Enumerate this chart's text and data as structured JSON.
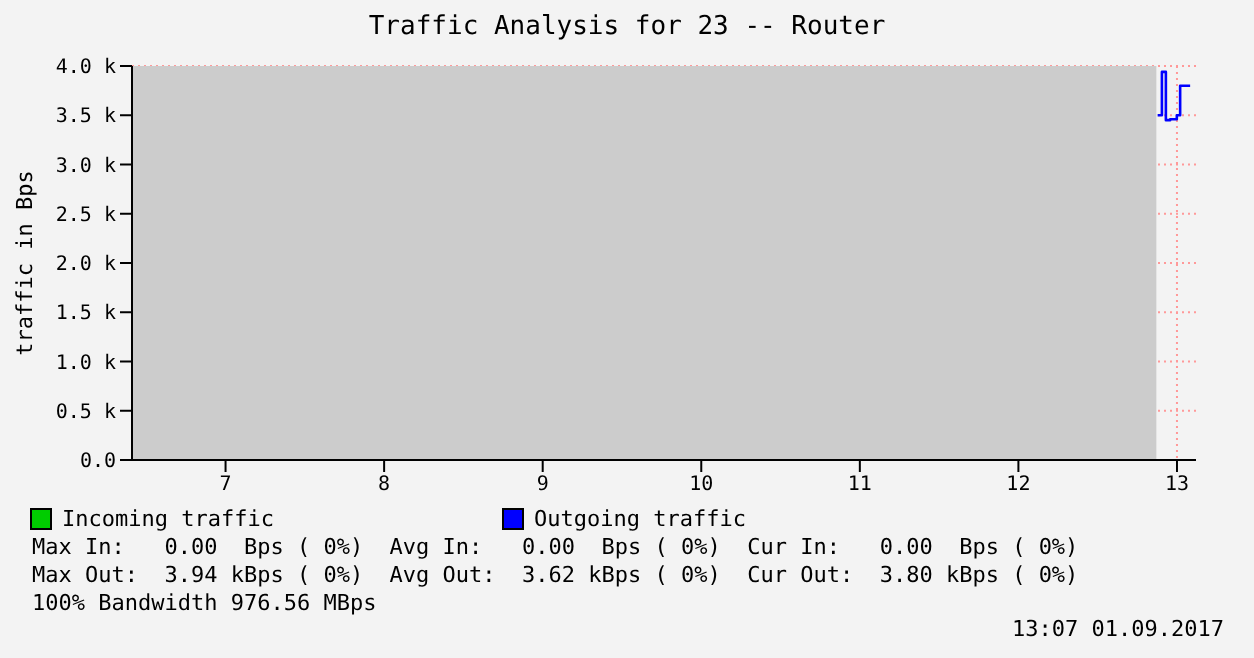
{
  "chart_data": {
    "type": "step",
    "title": "Traffic Analysis for 23 -- Router",
    "ylabel": "traffic in Bps",
    "xlim": [
      6.41,
      13.12
    ],
    "xticks": [
      7,
      8,
      9,
      10,
      11,
      12,
      13
    ],
    "ylim": [
      0,
      4000
    ],
    "yticks": [
      {
        "value": 0,
        "label": "0.0"
      },
      {
        "value": 500,
        "label": "0.5 k"
      },
      {
        "value": 1000,
        "label": "1.0 k"
      },
      {
        "value": 1500,
        "label": "1.5 k"
      },
      {
        "value": 2000,
        "label": "2.0 k"
      },
      {
        "value": 2500,
        "label": "2.5 k"
      },
      {
        "value": 3000,
        "label": "3.0 k"
      },
      {
        "value": 3500,
        "label": "3.5 k"
      },
      {
        "value": 4000,
        "label": "4.0 k"
      }
    ],
    "x": [
      12.878,
      12.905,
      12.93,
      12.957,
      12.999,
      13.02,
      13.083
    ],
    "series": [
      {
        "name": "Incoming traffic",
        "color": "#00cc00",
        "values": [
          null,
          null,
          null,
          null,
          null,
          null,
          null
        ]
      },
      {
        "name": "Outgoing traffic",
        "color": "#0000ff",
        "values": [
          3500,
          3940,
          3450,
          3460,
          3500,
          3800,
          3800
        ]
      }
    ],
    "bands": [
      {
        "axis": "x",
        "from": 6.41,
        "to": 12.87,
        "color": "#cccccc"
      }
    ],
    "grid": true,
    "legend": "bottom",
    "marker": "none",
    "line_style": "solid",
    "annotations": [
      "Max In:   0.00  Bps ( 0%)  Avg In:   0.00  Bps ( 0%)  Cur In:   0.00  Bps ( 0%)",
      "Max Out:  3.94 kBps ( 0%)  Avg Out:  3.62 kBps ( 0%)  Cur Out:  3.80 kBps ( 0%)",
      "100% Bandwidth 976.56 MBps",
      "13:07 01.09.2017"
    ]
  }
}
